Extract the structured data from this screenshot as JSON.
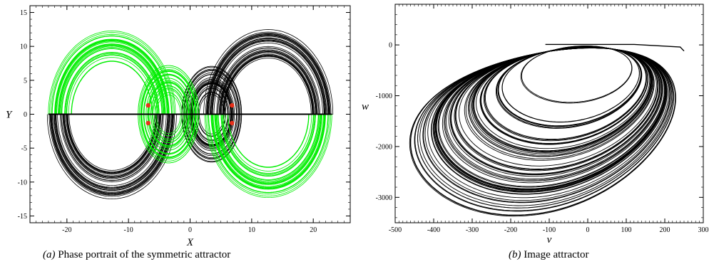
{
  "chart_data": [
    {
      "type": "line",
      "panel_label": "(a)",
      "caption": "Phase portrait of the symmetric attractor",
      "xlabel": "X",
      "ylabel": "Y",
      "xlim": [
        -26,
        26
      ],
      "ylim": [
        -16,
        16
      ],
      "xticks": [
        -20,
        -10,
        0,
        10,
        20
      ],
      "yticks": [
        -15,
        -10,
        -5,
        0,
        5,
        10,
        15
      ],
      "grid": false,
      "colors": {
        "green": "#00ee00",
        "black": "#000000",
        "equilibria": "#e8301a"
      },
      "series": [
        {
          "color": "black",
          "lobe_x": [
            0,
            7,
            13,
            18,
            21,
            22,
            21,
            18,
            13,
            7,
            3,
            2,
            4,
            7,
            9,
            8,
            6,
            3,
            1,
            0,
            -2,
            -7,
            -13,
            -18,
            -21,
            -22,
            -21,
            -18,
            -13,
            -7,
            -3,
            -2,
            -4,
            -7,
            -9,
            -8,
            -6,
            -3,
            -1,
            0
          ],
          "lobe_y": [
            0,
            11,
            13.5,
            12.5,
            9.5,
            5.5,
            1.5,
            -1,
            0.5,
            1.5,
            -2,
            -6,
            -9,
            -8.5,
            -4.5,
            -1,
            1,
            0.5,
            0.2,
            0,
            0,
            -11,
            -13.5,
            -12.5,
            -9.5,
            -5.5,
            -1.5,
            1,
            -0.5,
            -1.5,
            2,
            6,
            9,
            8.5,
            4.5,
            1,
            -1,
            -0.5,
            -0.2,
            0
          ]
        },
        {
          "color": "green",
          "lobe_x": [
            0,
            -7,
            -13,
            -18,
            -21,
            -22,
            -21,
            -18,
            -13,
            -7,
            -3,
            -2,
            -4,
            -7,
            -9,
            -8,
            -6,
            -3,
            -1,
            0,
            2,
            7,
            13,
            18,
            21,
            22,
            21,
            18,
            13,
            7,
            3,
            2,
            4,
            7,
            9,
            8,
            6,
            3,
            1,
            0
          ],
          "lobe_y": [
            0,
            11,
            13.5,
            12.5,
            9.5,
            5.5,
            1.5,
            -1,
            0.5,
            1.5,
            -2,
            -6,
            -9,
            -8.5,
            -4.5,
            -1,
            1,
            0.5,
            0.2,
            0,
            0,
            -11,
            -13.5,
            -12.5,
            -9.5,
            -5.5,
            -1.5,
            1,
            -0.5,
            -1.5,
            2,
            6,
            9,
            8.5,
            4.5,
            1,
            -1,
            -0.5,
            -0.2,
            0
          ]
        }
      ],
      "equilibria": [
        {
          "x": -6.8,
          "y": 1.3
        },
        {
          "x": -6.8,
          "y": -1.3
        },
        {
          "x": 6.8,
          "y": 1.3
        },
        {
          "x": 6.8,
          "y": -1.3
        }
      ]
    },
    {
      "type": "line",
      "panel_label": "(b)",
      "caption": "Image attractor",
      "xlabel": "v",
      "ylabel": "w",
      "xlim": [
        -500,
        300
      ],
      "ylim": [
        -3500,
        800
      ],
      "xticks": [
        -500,
        -400,
        -300,
        -200,
        -100,
        0,
        100,
        200,
        300
      ],
      "yticks": [
        -3000,
        -2000,
        -1000,
        0
      ],
      "grid": false,
      "color": "#000000",
      "outer_loop": {
        "x": [
          -100,
          230,
          250,
          240,
          180,
          60,
          -80,
          -220,
          -350,
          -440,
          -470,
          -450,
          -380,
          -280,
          -170,
          -60
        ],
        "y": [
          0,
          0,
          -100,
          -400,
          -1000,
          -1700,
          -2400,
          -3000,
          -3200,
          -2700,
          -1700,
          -900,
          -250,
          150,
          250,
          100
        ]
      },
      "inner_hole": {
        "x": [
          -100,
          90,
          100,
          80,
          20,
          -60,
          -110,
          -90
        ],
        "y": [
          0,
          -50,
          -200,
          -450,
          -650,
          -750,
          -600,
          -250
        ]
      }
    }
  ],
  "captions": {
    "a": {
      "label": "(a)",
      "text": "Phase portrait of the symmetric attractor"
    },
    "b": {
      "label": "(b)",
      "text": "Image attractor"
    }
  }
}
